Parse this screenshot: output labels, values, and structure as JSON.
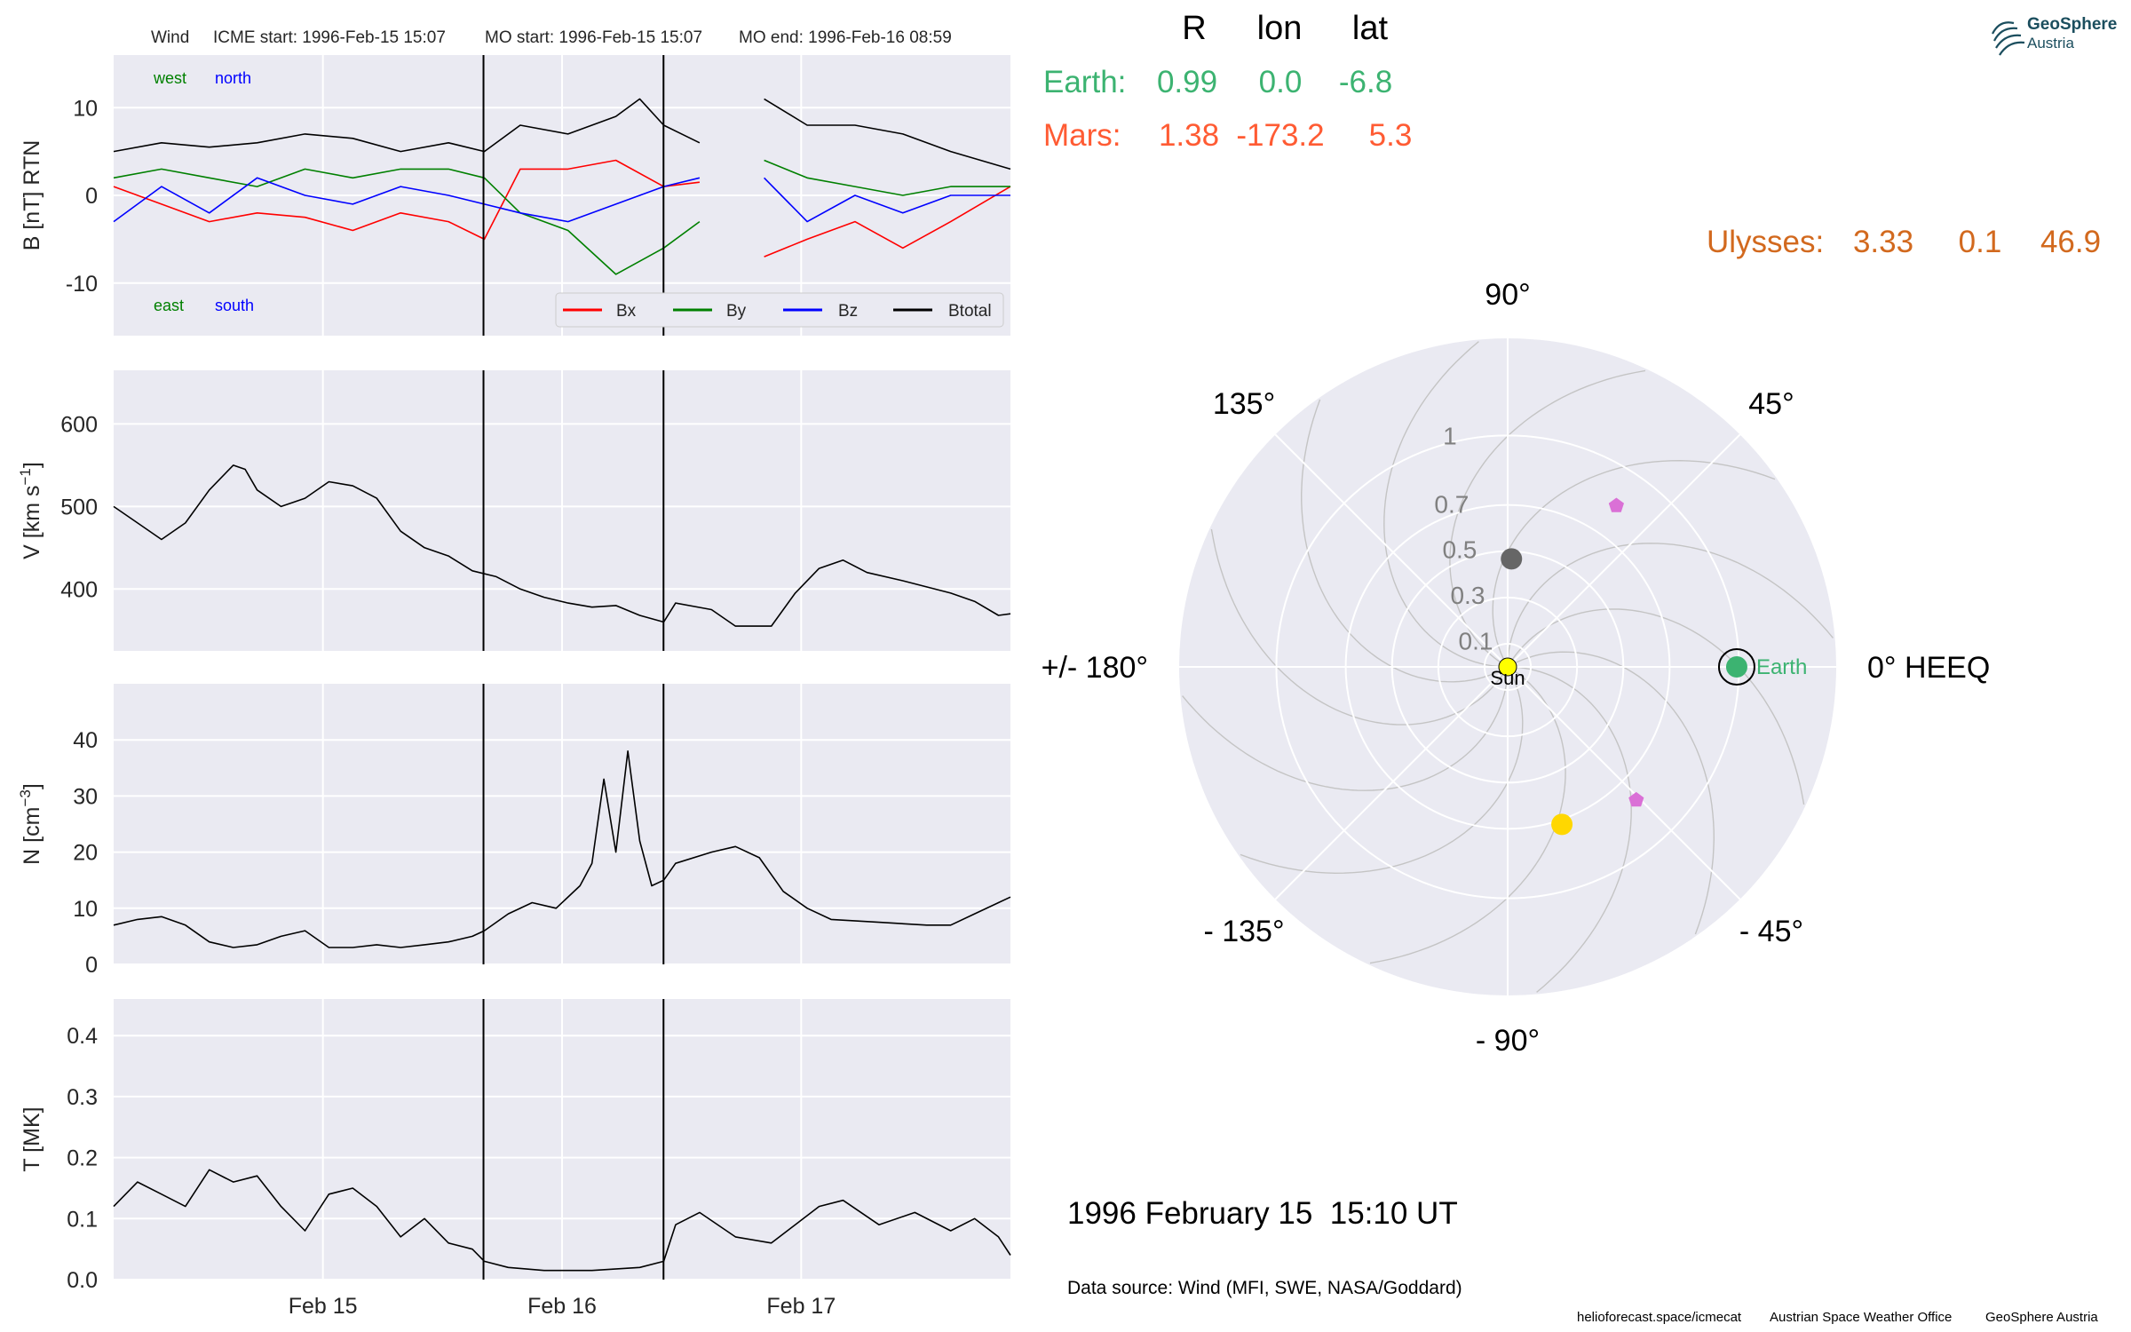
{
  "logo": {
    "name": "GeoSphere",
    "sub": "Austria"
  },
  "header": {
    "spacecraft": "Wind",
    "icme_start": "ICME start: 1996-Feb-15 15:07",
    "mo_start": "MO start: 1996-Feb-15 15:07",
    "mo_end": "MO end: 1996-Feb-16 08:59"
  },
  "colors": {
    "panel_bg": "#eaeaf2",
    "grid": "#ffffff",
    "bx": "#ff0000",
    "by": "#008000",
    "bz": "#0000ff",
    "btotal": "#000000",
    "earth": "#3cb371",
    "mars": "#ff5b33",
    "ulysses": "#d2691e",
    "sun": "#ffff00",
    "venus_marker": "#ffd700",
    "mercury_marker": "#666666",
    "probe_marker": "#da70d6"
  },
  "chart_data": [
    {
      "type": "line",
      "ylabel": "B [nT] RTN",
      "ylim": [
        -16,
        16
      ],
      "yticks": [
        -10,
        0,
        10
      ],
      "xlim": [
        0,
        3.75
      ],
      "xtick_positions": [
        0.875,
        1.875,
        2.875
      ],
      "xtick_labels": [
        "Feb 15",
        "Feb 16",
        "Feb 17"
      ],
      "vlines": [
        1.5465,
        2.2993
      ],
      "annotations": {
        "top_left": "west",
        "top_right": "north",
        "bottom_left": "east",
        "bottom_right": "south"
      },
      "data_gap": [
        2.5,
        2.7
      ],
      "series": [
        {
          "name": "Bx",
          "x": [
            0,
            0.2,
            0.4,
            0.6,
            0.8,
            1.0,
            1.2,
            1.4,
            1.55,
            1.7,
            1.9,
            2.1,
            2.3,
            2.45,
            2.72,
            2.9,
            3.1,
            3.3,
            3.5,
            3.75
          ],
          "values": [
            1,
            -1,
            -3,
            -2,
            -2.5,
            -4,
            -2,
            -3,
            -5,
            3,
            3,
            4,
            1,
            1.5,
            -7,
            -5,
            -3,
            -6,
            -3,
            1
          ]
        },
        {
          "name": "By",
          "x": [
            0,
            0.2,
            0.4,
            0.6,
            0.8,
            1.0,
            1.2,
            1.4,
            1.55,
            1.7,
            1.9,
            2.1,
            2.3,
            2.45,
            2.72,
            2.9,
            3.1,
            3.3,
            3.5,
            3.75
          ],
          "values": [
            2,
            3,
            2,
            1,
            3,
            2,
            3,
            3,
            2,
            -2,
            -4,
            -9,
            -6,
            -3,
            4,
            2,
            1,
            0,
            1,
            1
          ]
        },
        {
          "name": "Bz",
          "x": [
            0,
            0.2,
            0.4,
            0.6,
            0.8,
            1.0,
            1.2,
            1.4,
            1.55,
            1.7,
            1.9,
            2.1,
            2.3,
            2.45,
            2.72,
            2.9,
            3.1,
            3.3,
            3.5,
            3.75
          ],
          "values": [
            -3,
            1,
            -2,
            2,
            0,
            -1,
            1,
            0,
            -1,
            -2,
            -3,
            -1,
            1,
            2,
            2,
            -3,
            0,
            -2,
            0,
            0
          ]
        },
        {
          "name": "Btotal",
          "x": [
            0,
            0.2,
            0.4,
            0.6,
            0.8,
            1.0,
            1.2,
            1.4,
            1.55,
            1.7,
            1.9,
            2.1,
            2.2,
            2.3,
            2.45,
            2.72,
            2.9,
            3.1,
            3.3,
            3.5,
            3.75
          ],
          "values": [
            5,
            6,
            5.5,
            6,
            7,
            6.5,
            5,
            6,
            5,
            8,
            7,
            9,
            11,
            8,
            6,
            11,
            8,
            8,
            7,
            5,
            3
          ]
        }
      ]
    },
    {
      "type": "line",
      "ylabel": "V [km s",
      "ylabel_sup": "−1",
      "ylabel_end": "]",
      "ylim": [
        325,
        665
      ],
      "yticks": [
        400,
        500,
        600
      ],
      "xlim": [
        0,
        3.75
      ],
      "vlines": [
        1.5465,
        2.2993
      ],
      "series": [
        {
          "name": "V",
          "x": [
            0,
            0.1,
            0.2,
            0.3,
            0.4,
            0.5,
            0.55,
            0.6,
            0.7,
            0.8,
            0.9,
            1.0,
            1.1,
            1.2,
            1.3,
            1.4,
            1.5,
            1.6,
            1.7,
            1.8,
            1.9,
            2.0,
            2.1,
            2.2,
            2.3,
            2.35,
            2.5,
            2.6,
            2.75,
            2.85,
            2.95,
            3.05,
            3.15,
            3.3,
            3.5,
            3.6,
            3.7,
            3.75
          ],
          "values": [
            500,
            480,
            460,
            480,
            520,
            550,
            545,
            520,
            500,
            510,
            530,
            525,
            510,
            470,
            450,
            440,
            422,
            415,
            400,
            390,
            383,
            378,
            380,
            368,
            360,
            383,
            375,
            355,
            355,
            395,
            425,
            435,
            420,
            410,
            395,
            385,
            368,
            370
          ]
        }
      ]
    },
    {
      "type": "line",
      "ylabel": "N [cm",
      "ylabel_sup": "−3",
      "ylabel_end": "]",
      "ylim": [
        0,
        50
      ],
      "yticks": [
        0,
        10,
        20,
        30,
        40
      ],
      "xlim": [
        0,
        3.75
      ],
      "vlines": [
        1.5465,
        2.2993
      ],
      "series": [
        {
          "name": "N",
          "x": [
            0,
            0.1,
            0.2,
            0.3,
            0.4,
            0.5,
            0.6,
            0.7,
            0.8,
            0.9,
            1.0,
            1.1,
            1.2,
            1.3,
            1.4,
            1.5,
            1.55,
            1.65,
            1.75,
            1.85,
            1.95,
            2.0,
            2.05,
            2.1,
            2.15,
            2.2,
            2.25,
            2.3,
            2.35,
            2.5,
            2.6,
            2.7,
            2.8,
            2.9,
            3.0,
            3.2,
            3.4,
            3.5,
            3.6,
            3.7,
            3.75
          ],
          "values": [
            7,
            8,
            8.5,
            7,
            4,
            3,
            3.5,
            5,
            6,
            3,
            3,
            3.5,
            3,
            3.5,
            4,
            5,
            6,
            9,
            11,
            10,
            14,
            18,
            33,
            20,
            38,
            22,
            14,
            15,
            18,
            20,
            21,
            19,
            13,
            10,
            8,
            7.5,
            7,
            7,
            9,
            11,
            12
          ]
        }
      ]
    },
    {
      "type": "line",
      "ylabel": "T [MK]",
      "ylim": [
        0,
        0.46
      ],
      "yticks": [
        0.0,
        0.1,
        0.2,
        0.3,
        0.4
      ],
      "xlim": [
        0,
        3.75
      ],
      "xtick_positions": [
        0.875,
        1.875,
        2.875
      ],
      "xtick_labels": [
        "Feb 15",
        "Feb 16",
        "Feb 17"
      ],
      "vlines": [
        1.5465,
        2.2993
      ],
      "series": [
        {
          "name": "T",
          "x": [
            0,
            0.1,
            0.2,
            0.3,
            0.4,
            0.5,
            0.6,
            0.7,
            0.8,
            0.9,
            1.0,
            1.1,
            1.2,
            1.3,
            1.4,
            1.5,
            1.55,
            1.65,
            1.8,
            2.0,
            2.2,
            2.3,
            2.35,
            2.45,
            2.6,
            2.75,
            2.85,
            2.95,
            3.05,
            3.2,
            3.35,
            3.5,
            3.6,
            3.7,
            3.75
          ],
          "values": [
            0.12,
            0.16,
            0.14,
            0.12,
            0.18,
            0.16,
            0.17,
            0.12,
            0.08,
            0.14,
            0.15,
            0.12,
            0.07,
            0.1,
            0.06,
            0.05,
            0.03,
            0.02,
            0.015,
            0.015,
            0.02,
            0.03,
            0.09,
            0.11,
            0.07,
            0.06,
            0.09,
            0.12,
            0.13,
            0.09,
            0.11,
            0.08,
            0.1,
            0.07,
            0.04
          ]
        }
      ]
    },
    {
      "type": "scatter",
      "polar": true,
      "radial_ticks": [
        0.1,
        0.3,
        0.5,
        0.7,
        1.0
      ],
      "angle_labels": [
        "0° HEEQ",
        "45°",
        "90°",
        "135°",
        "+/- 180°",
        "- 135°",
        "- 90°",
        "- 45°"
      ],
      "positions_table": {
        "columns": [
          "R",
          "lon",
          "lat"
        ],
        "rows": [
          {
            "name": "Earth:",
            "R": "0.99",
            "lon": "0.0",
            "lat": "-6.8"
          },
          {
            "name": "Mars:",
            "R": "1.38",
            "lon": "-173.2",
            "lat": "5.3"
          },
          {
            "name": "Ulysses:",
            "R": "3.33",
            "lon": "0.1",
            "lat": "46.9"
          }
        ]
      },
      "bodies": [
        {
          "name": "Sun",
          "r": 0.0,
          "lon": 0
        },
        {
          "name": "Earth",
          "r": 0.99,
          "lon": 0.0
        },
        {
          "r": 0.72,
          "lon": -71
        },
        {
          "r": 0.467,
          "lon": 88
        },
        {
          "r": 0.84,
          "lon": 56
        },
        {
          "r": 0.8,
          "lon": -46
        }
      ]
    }
  ],
  "timestamp": "1996 February 15  15:10 UT",
  "data_source": "Data source: Wind (MFI, SWE, NASA/Goddard)",
  "footer": {
    "url": "helioforecast.space/icmecat",
    "office": "Austrian Space Weather Office",
    "org": "GeoSphere Austria"
  }
}
